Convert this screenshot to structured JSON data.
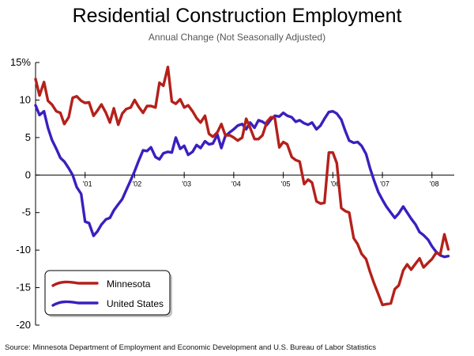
{
  "chart_data": {
    "type": "line",
    "title": "Residential Construction Employment",
    "subtitle": "Annual Change (Not Seasonally Adjusted)",
    "source": "Source: Minnesota Department of Employment and Economic Development and U.S. Bureau of Labor Statistics",
    "xlabel": "",
    "ylabel": "",
    "ylim": [
      -20,
      15
    ],
    "xlim": [
      2000.0,
      2008.45
    ],
    "y_ticks": [
      15,
      10,
      5,
      0,
      -5,
      -10,
      -15,
      -20
    ],
    "y_tick_labels": [
      "15%",
      "10",
      "5",
      "0",
      "-5",
      "-10",
      "-15",
      "-20"
    ],
    "x_ticks": [
      {
        "x": 2001.0,
        "label": "'01"
      },
      {
        "x": 2002.0,
        "label": "'02"
      },
      {
        "x": 2003.0,
        "label": "'03"
      },
      {
        "x": 2004.0,
        "label": "'04"
      },
      {
        "x": 2005.0,
        "label": "'05"
      },
      {
        "x": 2006.0,
        "label": "'06"
      },
      {
        "x": 2007.0,
        "label": "'07"
      },
      {
        "x": 2008.0,
        "label": "'08"
      }
    ],
    "grid": false,
    "legend": "bottom-left",
    "series": [
      {
        "name": "Minnesota",
        "color": "#b5201a",
        "points": [
          [
            2000.0,
            12.8
          ],
          [
            2000.08,
            10.6
          ],
          [
            2000.17,
            12.4
          ],
          [
            2000.25,
            9.9
          ],
          [
            2000.33,
            9.4
          ],
          [
            2000.42,
            8.5
          ],
          [
            2000.5,
            8.3
          ],
          [
            2000.58,
            6.8
          ],
          [
            2000.67,
            7.7
          ],
          [
            2000.75,
            10.3
          ],
          [
            2000.83,
            10.5
          ],
          [
            2000.92,
            9.9
          ],
          [
            2001.0,
            9.6
          ],
          [
            2001.08,
            9.7
          ],
          [
            2001.17,
            7.9
          ],
          [
            2001.25,
            8.6
          ],
          [
            2001.33,
            9.4
          ],
          [
            2001.42,
            8.3
          ],
          [
            2001.5,
            7.0
          ],
          [
            2001.58,
            8.9
          ],
          [
            2001.67,
            6.7
          ],
          [
            2001.75,
            8.2
          ],
          [
            2001.83,
            8.8
          ],
          [
            2001.92,
            9.0
          ],
          [
            2002.0,
            10.0
          ],
          [
            2002.08,
            9.1
          ],
          [
            2002.17,
            8.3
          ],
          [
            2002.25,
            9.2
          ],
          [
            2002.33,
            9.2
          ],
          [
            2002.42,
            9.0
          ],
          [
            2002.5,
            12.3
          ],
          [
            2002.58,
            11.9
          ],
          [
            2002.67,
            14.4
          ],
          [
            2002.75,
            9.8
          ],
          [
            2002.83,
            9.5
          ],
          [
            2002.92,
            10.1
          ],
          [
            2003.0,
            9.0
          ],
          [
            2003.08,
            9.3
          ],
          [
            2003.17,
            8.5
          ],
          [
            2003.25,
            7.6
          ],
          [
            2003.33,
            7.0
          ],
          [
            2003.42,
            7.9
          ],
          [
            2003.5,
            5.5
          ],
          [
            2003.58,
            5.1
          ],
          [
            2003.67,
            5.7
          ],
          [
            2003.75,
            6.8
          ],
          [
            2003.83,
            5.3
          ],
          [
            2003.92,
            5.3
          ],
          [
            2004.0,
            5.0
          ],
          [
            2004.08,
            4.6
          ],
          [
            2004.17,
            5.0
          ],
          [
            2004.25,
            7.5
          ],
          [
            2004.33,
            6.3
          ],
          [
            2004.42,
            4.8
          ],
          [
            2004.5,
            4.8
          ],
          [
            2004.58,
            5.3
          ],
          [
            2004.67,
            7.1
          ],
          [
            2004.75,
            7.7
          ],
          [
            2004.83,
            7.6
          ],
          [
            2004.92,
            3.7
          ],
          [
            2005.0,
            4.4
          ],
          [
            2005.08,
            4.1
          ],
          [
            2005.17,
            2.4
          ],
          [
            2005.25,
            2.0
          ],
          [
            2005.33,
            1.8
          ],
          [
            2005.42,
            -1.2
          ],
          [
            2005.5,
            -0.6
          ],
          [
            2005.58,
            -1.0
          ],
          [
            2005.67,
            -3.5
          ],
          [
            2005.75,
            -3.8
          ],
          [
            2005.83,
            -3.7
          ],
          [
            2005.92,
            3.0
          ],
          [
            2006.0,
            3.0
          ],
          [
            2006.08,
            1.6
          ],
          [
            2006.17,
            -4.4
          ],
          [
            2006.25,
            -4.8
          ],
          [
            2006.33,
            -5.0
          ],
          [
            2006.42,
            -8.4
          ],
          [
            2006.5,
            -9.2
          ],
          [
            2006.58,
            -10.5
          ],
          [
            2006.67,
            -11.2
          ],
          [
            2006.75,
            -12.9
          ],
          [
            2006.83,
            -14.4
          ],
          [
            2006.92,
            -15.9
          ],
          [
            2007.0,
            -17.3
          ],
          [
            2007.08,
            -17.2
          ],
          [
            2007.17,
            -17.1
          ],
          [
            2007.25,
            -15.2
          ],
          [
            2007.33,
            -14.7
          ],
          [
            2007.42,
            -12.7
          ],
          [
            2007.5,
            -11.9
          ],
          [
            2007.58,
            -12.6
          ],
          [
            2007.67,
            -11.8
          ],
          [
            2007.75,
            -11.1
          ],
          [
            2007.83,
            -12.3
          ],
          [
            2007.92,
            -11.7
          ],
          [
            2008.0,
            -11.2
          ],
          [
            2008.08,
            -10.4
          ],
          [
            2008.17,
            -10.5
          ],
          [
            2008.25,
            -7.9
          ],
          [
            2008.33,
            -9.9
          ]
        ]
      },
      {
        "name": "United States",
        "color": "#3b1fbf",
        "points": [
          [
            2000.0,
            9.3
          ],
          [
            2000.08,
            8.0
          ],
          [
            2000.17,
            8.5
          ],
          [
            2000.25,
            6.3
          ],
          [
            2000.33,
            4.7
          ],
          [
            2000.42,
            3.5
          ],
          [
            2000.5,
            2.3
          ],
          [
            2000.58,
            1.8
          ],
          [
            2000.67,
            0.9
          ],
          [
            2000.75,
            0.0
          ],
          [
            2000.83,
            -1.6
          ],
          [
            2000.92,
            -2.5
          ],
          [
            2001.0,
            -6.2
          ],
          [
            2001.08,
            -6.4
          ],
          [
            2001.17,
            -8.1
          ],
          [
            2001.25,
            -7.5
          ],
          [
            2001.33,
            -6.6
          ],
          [
            2001.42,
            -5.9
          ],
          [
            2001.5,
            -5.7
          ],
          [
            2001.58,
            -4.7
          ],
          [
            2001.67,
            -3.9
          ],
          [
            2001.75,
            -3.2
          ],
          [
            2001.83,
            -2.0
          ],
          [
            2001.92,
            -0.7
          ],
          [
            2002.0,
            0.5
          ],
          [
            2002.08,
            1.9
          ],
          [
            2002.17,
            3.3
          ],
          [
            2002.25,
            3.2
          ],
          [
            2002.33,
            3.7
          ],
          [
            2002.42,
            2.4
          ],
          [
            2002.5,
            2.1
          ],
          [
            2002.58,
            2.9
          ],
          [
            2002.67,
            3.1
          ],
          [
            2002.75,
            3.0
          ],
          [
            2002.83,
            5.0
          ],
          [
            2002.92,
            3.5
          ],
          [
            2003.0,
            3.9
          ],
          [
            2003.08,
            2.7
          ],
          [
            2003.17,
            3.1
          ],
          [
            2003.25,
            4.0
          ],
          [
            2003.33,
            3.6
          ],
          [
            2003.42,
            4.5
          ],
          [
            2003.5,
            4.1
          ],
          [
            2003.58,
            4.2
          ],
          [
            2003.67,
            5.4
          ],
          [
            2003.75,
            3.6
          ],
          [
            2003.83,
            5.2
          ],
          [
            2003.92,
            5.7
          ],
          [
            2004.0,
            6.1
          ],
          [
            2004.08,
            6.6
          ],
          [
            2004.17,
            6.8
          ],
          [
            2004.25,
            6.1
          ],
          [
            2004.33,
            7.0
          ],
          [
            2004.42,
            6.3
          ],
          [
            2004.5,
            7.3
          ],
          [
            2004.58,
            7.1
          ],
          [
            2004.67,
            6.7
          ],
          [
            2004.75,
            7.4
          ],
          [
            2004.83,
            7.9
          ],
          [
            2004.92,
            7.8
          ],
          [
            2005.0,
            8.3
          ],
          [
            2005.08,
            7.9
          ],
          [
            2005.17,
            7.7
          ],
          [
            2005.25,
            7.1
          ],
          [
            2005.33,
            7.3
          ],
          [
            2005.42,
            6.9
          ],
          [
            2005.5,
            6.7
          ],
          [
            2005.58,
            7.0
          ],
          [
            2005.67,
            6.1
          ],
          [
            2005.75,
            6.6
          ],
          [
            2005.83,
            7.5
          ],
          [
            2005.92,
            8.4
          ],
          [
            2006.0,
            8.5
          ],
          [
            2006.08,
            8.2
          ],
          [
            2006.17,
            7.4
          ],
          [
            2006.25,
            5.9
          ],
          [
            2006.33,
            4.6
          ],
          [
            2006.42,
            4.3
          ],
          [
            2006.5,
            4.4
          ],
          [
            2006.58,
            3.9
          ],
          [
            2006.67,
            2.8
          ],
          [
            2006.75,
            0.9
          ],
          [
            2006.83,
            -0.7
          ],
          [
            2006.92,
            -2.3
          ],
          [
            2007.0,
            -3.3
          ],
          [
            2007.08,
            -4.2
          ],
          [
            2007.17,
            -5.0
          ],
          [
            2007.25,
            -5.7
          ],
          [
            2007.33,
            -5.1
          ],
          [
            2007.42,
            -4.2
          ],
          [
            2007.5,
            -5.0
          ],
          [
            2007.58,
            -5.8
          ],
          [
            2007.67,
            -6.6
          ],
          [
            2007.75,
            -7.6
          ],
          [
            2007.83,
            -8.0
          ],
          [
            2007.92,
            -8.6
          ],
          [
            2008.0,
            -9.5
          ],
          [
            2008.08,
            -10.2
          ],
          [
            2008.17,
            -10.7
          ],
          [
            2008.25,
            -10.9
          ],
          [
            2008.33,
            -10.8
          ]
        ]
      }
    ]
  }
}
